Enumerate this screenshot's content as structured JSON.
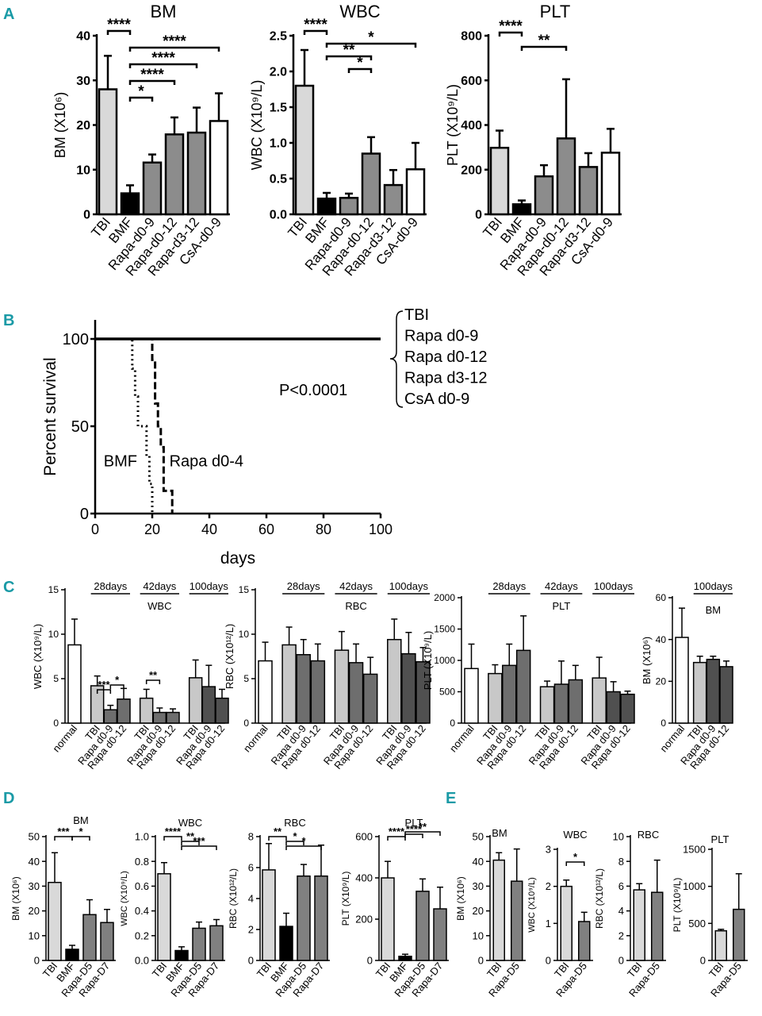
{
  "figure": {
    "panel_labels": {
      "A": "A",
      "B": "B",
      "C": "C",
      "D": "D",
      "E": "E"
    }
  },
  "chart_data": [
    {
      "id": "A1",
      "panel": "A",
      "type": "bar",
      "title": "BM",
      "ylabel": "BM (X10⁶)",
      "ylim": [
        0,
        40
      ],
      "yticks": [
        "0",
        "10",
        "20",
        "30",
        "40"
      ],
      "categories": [
        "TBI",
        "BMF",
        "Rapa-d0-9",
        "Rapa-d0-12",
        "Rapa-d3-12",
        "CsA-d0-9"
      ],
      "values": [
        28,
        4.7,
        11.6,
        17.9,
        18.3,
        20.9
      ],
      "errors": [
        7.5,
        1.8,
        1.8,
        3.8,
        5.6,
        6.2
      ],
      "fills": [
        "#d9d9d9",
        "#000000",
        "#8c8c8c",
        "#8c8c8c",
        "#8c8c8c",
        "#ffffff"
      ],
      "significance": [
        {
          "from": 0,
          "to": 1,
          "label": "****"
        },
        {
          "from": 1,
          "to": 5,
          "label": "****"
        },
        {
          "from": 1,
          "to": 4,
          "label": "****"
        },
        {
          "from": 1,
          "to": 3,
          "label": "****"
        },
        {
          "from": 1,
          "to": 2,
          "label": "*"
        }
      ]
    },
    {
      "id": "A2",
      "panel": "A",
      "type": "bar",
      "title": "WBC",
      "ylabel": "WBC (X10⁹/L)",
      "ylim": [
        0,
        2.5
      ],
      "yticks": [
        "0.0",
        "0.5",
        "1.0",
        "1.5",
        "2.0",
        "2.5"
      ],
      "categories": [
        "TBI",
        "BMF",
        "Rapa-d0-9",
        "Rapa-d0-12",
        "Rapa-d3-12",
        "CsA-d0-9"
      ],
      "values": [
        1.8,
        0.22,
        0.23,
        0.85,
        0.41,
        0.63
      ],
      "errors": [
        0.5,
        0.08,
        0.06,
        0.23,
        0.21,
        0.37
      ],
      "fills": [
        "#d9d9d9",
        "#000000",
        "#8c8c8c",
        "#8c8c8c",
        "#8c8c8c",
        "#ffffff"
      ],
      "significance": [
        {
          "from": 0,
          "to": 1,
          "label": "****"
        },
        {
          "from": 1,
          "to": 5,
          "label": "*"
        },
        {
          "from": 1,
          "to": 3,
          "label": "**"
        },
        {
          "from": 2,
          "to": 3,
          "label": "*"
        }
      ]
    },
    {
      "id": "A3",
      "panel": "A",
      "type": "bar",
      "title": "PLT",
      "ylabel": "PLT (X10⁹/L)",
      "ylim": [
        0,
        800
      ],
      "yticks": [
        "0",
        "200",
        "400",
        "600",
        "800"
      ],
      "categories": [
        "TBI",
        "BMF",
        "Rapa-d0-9",
        "Rapa-d0-12",
        "Rapa-d3-12",
        "CsA-d0-9"
      ],
      "values": [
        298,
        45,
        170,
        340,
        212,
        276
      ],
      "errors": [
        77,
        17,
        50,
        265,
        62,
        107
      ],
      "fills": [
        "#d9d9d9",
        "#000000",
        "#8c8c8c",
        "#8c8c8c",
        "#8c8c8c",
        "#ffffff"
      ],
      "significance": [
        {
          "from": 0,
          "to": 1,
          "label": "****"
        },
        {
          "from": 1,
          "to": 3,
          "label": "**"
        }
      ]
    },
    {
      "id": "B",
      "panel": "B",
      "type": "line",
      "subtype": "survival",
      "ylabel": "Percent survival",
      "xlabel": "days",
      "xlim": [
        0,
        100
      ],
      "ylim": [
        0,
        100
      ],
      "xticks": [
        "0",
        "20",
        "40",
        "60",
        "80",
        "100"
      ],
      "yticks": [
        "0",
        "50",
        "100"
      ],
      "pvalue": "P<0.0001",
      "group_labels": [
        "TBI",
        "Rapa d0-9",
        "Rapa d0-12",
        "Rapa d3-12",
        "CsA d0-9"
      ],
      "series": [
        {
          "name": "TBI / Rapa d0-9 / Rapa d0-12 / Rapa d3-12 / CsA d0-9",
          "style": "solid",
          "points": [
            [
              0,
              100
            ],
            [
              100,
              100
            ]
          ]
        },
        {
          "name": "BMF",
          "style": "dotted",
          "points": [
            [
              0,
              100
            ],
            [
              13,
              100
            ],
            [
              13,
              83
            ],
            [
              14,
              83
            ],
            [
              14,
              67
            ],
            [
              15,
              67
            ],
            [
              15,
              50
            ],
            [
              18,
              50
            ],
            [
              18,
              33
            ],
            [
              19,
              33
            ],
            [
              19,
              17
            ],
            [
              20,
              17
            ],
            [
              20,
              0
            ]
          ]
        },
        {
          "name": "Rapa d0-4",
          "style": "dashed",
          "points": [
            [
              0,
              100
            ],
            [
              20,
              100
            ],
            [
              20,
              88
            ],
            [
              21,
              88
            ],
            [
              21,
              63
            ],
            [
              22,
              63
            ],
            [
              22,
              50
            ],
            [
              23,
              50
            ],
            [
              23,
              38
            ],
            [
              24,
              38
            ],
            [
              24,
              13
            ],
            [
              27,
              13
            ],
            [
              27,
              0
            ]
          ]
        }
      ],
      "curve_labels": [
        {
          "text": "BMF",
          "x": 3,
          "y": 27
        },
        {
          "text": "Rapa d0-4",
          "x": 26,
          "y": 27
        }
      ]
    },
    {
      "id": "C1",
      "panel": "C",
      "type": "bar",
      "ylabel": "WBC (X10⁹/L)",
      "inner_title": "WBC",
      "ylim": [
        0,
        15
      ],
      "yticks": [
        "0",
        "5",
        "10",
        "15"
      ],
      "categories": [
        "normal",
        "TBI",
        "Rapa d0-9",
        "Rapa d0-12",
        "TBI",
        "Rapa d0-9",
        "Rapa d0-12",
        "TBI",
        "Rapa d0-9",
        "Rapa d0-12"
      ],
      "values": [
        8.8,
        4.2,
        1.5,
        2.7,
        2.8,
        1.2,
        1.2,
        5.1,
        4.1,
        2.8
      ],
      "errors": [
        2.9,
        1.1,
        0.5,
        1.2,
        1.0,
        0.5,
        0.4,
        2.0,
        2.4,
        1.0
      ],
      "fills": [
        "#ffffff",
        "#c8c8c8",
        "#6e6e6e",
        "#6e6e6e",
        "#c8c8c8",
        "#6e6e6e",
        "#6e6e6e",
        "#c8c8c8",
        "#505050",
        "#505050"
      ],
      "time_labels": [
        {
          "text": "28days",
          "from": 1,
          "to": 3
        },
        {
          "text": "42days",
          "from": 4,
          "to": 6
        },
        {
          "text": "100days",
          "from": 7,
          "to": 9
        }
      ],
      "significance": [
        {
          "from": 1,
          "to": 2,
          "label": "***"
        },
        {
          "from": 2,
          "to": 3,
          "label": "*"
        },
        {
          "from": 4,
          "to": 5,
          "label": "**"
        }
      ]
    },
    {
      "id": "C2",
      "panel": "C",
      "type": "bar",
      "ylabel": "RBC (X10¹²/L)",
      "inner_title": "RBC",
      "ylim": [
        0,
        15
      ],
      "yticks": [
        "0",
        "5",
        "10",
        "15"
      ],
      "categories": [
        "normal",
        "TBI",
        "Rapa d0-9",
        "Rapa d0-12",
        "TBI",
        "Rapa d0-9",
        "Rapa d0-12",
        "TBI",
        "Rapa d0-9",
        "Rapa d0-12"
      ],
      "values": [
        7.0,
        8.8,
        7.7,
        7.0,
        8.2,
        6.8,
        5.5,
        9.4,
        7.8,
        6.9
      ],
      "errors": [
        2.1,
        2.0,
        1.7,
        1.9,
        2.1,
        2.1,
        1.9,
        2.3,
        2.4,
        1.6
      ],
      "fills": [
        "#ffffff",
        "#c8c8c8",
        "#6e6e6e",
        "#6e6e6e",
        "#c8c8c8",
        "#6e6e6e",
        "#6e6e6e",
        "#c8c8c8",
        "#505050",
        "#505050"
      ],
      "time_labels": [
        {
          "text": "28days",
          "from": 1,
          "to": 3
        },
        {
          "text": "42days",
          "from": 4,
          "to": 6
        },
        {
          "text": "100days",
          "from": 7,
          "to": 9
        }
      ],
      "significance": []
    },
    {
      "id": "C3",
      "panel": "C",
      "type": "bar",
      "ylabel": "PLT (X10⁹/L)",
      "inner_title": "PLT",
      "ylim": [
        0,
        2000
      ],
      "yticks": [
        "0",
        "500",
        "1000",
        "1500",
        "2000"
      ],
      "categories": [
        "normal",
        "TBI",
        "Rapa d0-9",
        "Rapa d0-12",
        "TBI",
        "Rapa d0-9",
        "Rapa d0-12",
        "TBI",
        "Rapa d0-9",
        "Rapa d0-12"
      ],
      "values": [
        870,
        790,
        920,
        1160,
        580,
        620,
        690,
        720,
        500,
        460
      ],
      "errors": [
        390,
        140,
        340,
        550,
        90,
        370,
        230,
        330,
        160,
        50
      ],
      "fills": [
        "#ffffff",
        "#c8c8c8",
        "#6e6e6e",
        "#6e6e6e",
        "#c8c8c8",
        "#6e6e6e",
        "#6e6e6e",
        "#c8c8c8",
        "#505050",
        "#505050"
      ],
      "time_labels": [
        {
          "text": "28days",
          "from": 1,
          "to": 3
        },
        {
          "text": "42days",
          "from": 4,
          "to": 6
        },
        {
          "text": "100days",
          "from": 7,
          "to": 9
        }
      ],
      "significance": []
    },
    {
      "id": "C4",
      "panel": "C",
      "type": "bar",
      "ylabel": "BM (X10⁶)",
      "inner_title": "BM",
      "ylim": [
        0,
        60
      ],
      "yticks": [
        "0",
        "20",
        "40",
        "60"
      ],
      "categories": [
        "normal",
        "TBI",
        "Rapa d0-9",
        "Rapa d0-12"
      ],
      "values": [
        41,
        29,
        30.5,
        27
      ],
      "errors": [
        14,
        3,
        1.5,
        2.7
      ],
      "fills": [
        "#ffffff",
        "#c8c8c8",
        "#505050",
        "#505050"
      ],
      "time_labels": [
        {
          "text": "100days",
          "from": 1,
          "to": 3
        }
      ],
      "significance": []
    },
    {
      "id": "D1",
      "panel": "D",
      "type": "bar",
      "title": "BM",
      "ylabel": "BM (X10⁶)",
      "ylim": [
        0,
        50
      ],
      "yticks": [
        "0",
        "10",
        "20",
        "30",
        "40",
        "50"
      ],
      "categories": [
        "TBI",
        "BMF",
        "Rapa-D5",
        "Rapa-D7"
      ],
      "values": [
        31.5,
        4.5,
        18.5,
        15.3
      ],
      "errors": [
        12,
        1.6,
        6,
        5.3
      ],
      "fills": [
        "#d9d9d9",
        "#000000",
        "#808080",
        "#808080"
      ],
      "significance": [
        {
          "from": 0,
          "to": 1,
          "label": "***"
        },
        {
          "from": 1,
          "to": 2,
          "label": "*"
        }
      ]
    },
    {
      "id": "D2",
      "panel": "D",
      "type": "bar",
      "title": "WBC",
      "ylabel": "WBC (X10⁹/L)",
      "ylim": [
        0,
        1.0
      ],
      "yticks": [
        "0.0",
        "0.2",
        "0.4",
        "0.6",
        "0.8",
        "1.0"
      ],
      "categories": [
        "TBI",
        "BMF",
        "Rapa-D5",
        "Rapa-D7"
      ],
      "values": [
        0.7,
        0.08,
        0.26,
        0.28
      ],
      "errors": [
        0.09,
        0.03,
        0.05,
        0.05
      ],
      "fills": [
        "#d9d9d9",
        "#000000",
        "#808080",
        "#808080"
      ],
      "significance": [
        {
          "from": 0,
          "to": 1,
          "label": "****"
        },
        {
          "from": 1,
          "to": 2,
          "label": "**"
        },
        {
          "from": 1,
          "to": 3,
          "label": "***"
        }
      ]
    },
    {
      "id": "D3",
      "panel": "D",
      "type": "bar",
      "title": "RBC",
      "ylabel": "RBC (X10¹²/L)",
      "ylim": [
        0,
        8
      ],
      "yticks": [
        "0",
        "2",
        "4",
        "6",
        "8"
      ],
      "categories": [
        "TBI",
        "BMF",
        "Rapa-D5",
        "Rapa-D7"
      ],
      "values": [
        5.85,
        2.2,
        5.45,
        5.45
      ],
      "errors": [
        1.7,
        0.85,
        0.75,
        2.0
      ],
      "fills": [
        "#d9d9d9",
        "#000000",
        "#808080",
        "#808080"
      ],
      "significance": [
        {
          "from": 0,
          "to": 1,
          "label": "**"
        },
        {
          "from": 1,
          "to": 2,
          "label": "*"
        },
        {
          "from": 1,
          "to": 3,
          "label": "*"
        }
      ]
    },
    {
      "id": "D4",
      "panel": "D",
      "type": "bar",
      "title": "PLT",
      "ylabel": "PLT (X10⁹/L)",
      "ylim": [
        0,
        600
      ],
      "yticks": [
        "0",
        "200",
        "400",
        "600"
      ],
      "categories": [
        "TBI",
        "BMF",
        "Rapa-D5",
        "Rapa-D7"
      ],
      "values": [
        400,
        20,
        335,
        250
      ],
      "errors": [
        80,
        10,
        60,
        105
      ],
      "fills": [
        "#d9d9d9",
        "#000000",
        "#808080",
        "#808080"
      ],
      "significance": [
        {
          "from": 0,
          "to": 1,
          "label": "****"
        },
        {
          "from": 1,
          "to": 2,
          "label": "****"
        },
        {
          "from": 1,
          "to": 3,
          "label": "**"
        }
      ]
    },
    {
      "id": "E1",
      "panel": "E",
      "type": "bar",
      "title": "BM",
      "ylabel": "BM (X10⁶)",
      "ylim": [
        0,
        50
      ],
      "yticks": [
        "0",
        "10",
        "20",
        "30",
        "40",
        "50"
      ],
      "categories": [
        "TBI",
        "Rapa-D5"
      ],
      "values": [
        40.5,
        32
      ],
      "errors": [
        3,
        13
      ],
      "fills": [
        "#d9d9d9",
        "#808080"
      ],
      "significance": []
    },
    {
      "id": "E2",
      "panel": "E",
      "type": "bar",
      "title": "WBC",
      "ylabel": "WBC (X10⁹/L)",
      "ylim": [
        0,
        3
      ],
      "yticks": [
        "0",
        "1",
        "2",
        "3"
      ],
      "categories": [
        "TBI",
        "Rapa-D5"
      ],
      "values": [
        2.0,
        1.05
      ],
      "errors": [
        0.17,
        0.25
      ],
      "fills": [
        "#d9d9d9",
        "#808080"
      ],
      "significance": [
        {
          "from": 0,
          "to": 1,
          "label": "*"
        }
      ]
    },
    {
      "id": "E3",
      "panel": "E",
      "type": "bar",
      "title": "RBC",
      "ylabel": "RBC (X10¹²/L)",
      "ylim": [
        0,
        10
      ],
      "yticks": [
        "0",
        "2",
        "4",
        "6",
        "8",
        "10"
      ],
      "categories": [
        "TBI",
        "Rapa-D5"
      ],
      "values": [
        5.7,
        5.5
      ],
      "errors": [
        0.5,
        2.6
      ],
      "fills": [
        "#d9d9d9",
        "#808080"
      ],
      "significance": []
    },
    {
      "id": "E4",
      "panel": "E",
      "type": "bar",
      "title": "PLT",
      "ylabel": "PLT (X10⁹/L)",
      "ylim": [
        0,
        1500
      ],
      "yticks": [
        "0",
        "500",
        "1000",
        "1500"
      ],
      "categories": [
        "TBI",
        "Rapa-D5"
      ],
      "values": [
        400,
        690
      ],
      "errors": [
        20,
        480
      ],
      "fills": [
        "#d9d9d9",
        "#808080"
      ],
      "significance": []
    }
  ]
}
